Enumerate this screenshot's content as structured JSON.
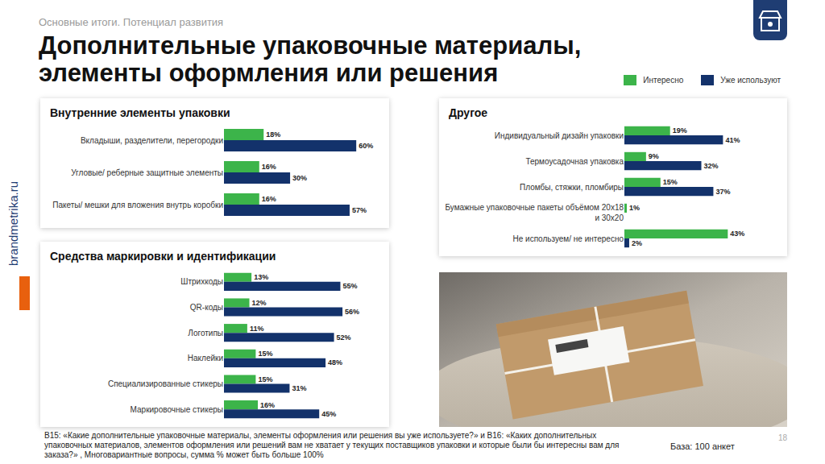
{
  "header": {
    "section": "Основные итоги. Потенциал развития",
    "title": "Дополнительные упаковочные материалы, элементы оформления или решения"
  },
  "side_label": "brandmetrika.ru",
  "footnote": "В15: «Какие дополнительные упаковочные материалы, элементы оформления или решения вы уже используете?» и В16: «Каких дополнительных упаковочных материалов, элементов оформления или решений вам не хватает у текущих поставщиков упаковки и которые были бы интересны вам для заказа?» , Многовариантные вопросы, сумма % может быть больше 100%",
  "base": "База: 100 анкет",
  "page_number": "18",
  "chart_data": [
    {
      "type": "bar",
      "title": "Внутренние элементы упаковки",
      "orientation": "horizontal",
      "data_labels": true,
      "tick_labels": "y",
      "legend": "top right",
      "xlim": [
        0,
        72
      ],
      "categories": [
        "Вкладыши, разделители, перегородки",
        "Угловые/ реберные защитные элементы",
        "Пакеты/ мешки для вложения внутрь коробки"
      ],
      "series": [
        {
          "name": "Интересно",
          "color": "#3cb44a",
          "values": [
            18,
            16,
            16
          ],
          "value_labels": [
            "18%",
            "16%",
            "16%"
          ]
        },
        {
          "name": "Уже используют",
          "color": "#13326b",
          "values": [
            60,
            30,
            57
          ],
          "value_labels": [
            "60%",
            "30%",
            "57%"
          ]
        }
      ]
    },
    {
      "type": "bar",
      "title": "Средства маркировки и идентификации",
      "orientation": "horizontal",
      "data_labels": true,
      "tick_labels": "y",
      "xlim": [
        0,
        75
      ],
      "categories": [
        "Штрихкоды",
        "QR-коды",
        "Логотипы",
        "Наклейки",
        "Специализированные стикеры",
        "Маркировочные стикеры"
      ],
      "series": [
        {
          "name": "Интересно",
          "color": "#3cb44a",
          "values": [
            13,
            12,
            11,
            15,
            15,
            16
          ],
          "value_labels": [
            "13%",
            "12%",
            "11%",
            "15%",
            "15%",
            "16%"
          ]
        },
        {
          "name": "Уже используют",
          "color": "#13326b",
          "values": [
            55,
            56,
            52,
            48,
            31,
            45
          ],
          "value_labels": [
            "55%",
            "56%",
            "52%",
            "48%",
            "31%",
            "45%"
          ]
        }
      ]
    },
    {
      "type": "bar",
      "title": "Другое",
      "orientation": "horizontal",
      "data_labels": true,
      "tick_labels": "y",
      "xlim": [
        0,
        65
      ],
      "categories": [
        "Индивидуальный дизайн упаковки",
        "Термоусадочная упаковка",
        "Пломбы, стяжки, пломбиры",
        "Бумажные упаковочные пакеты объёмом 20x18 и 30x20",
        "Не используем/ не интересно"
      ],
      "series": [
        {
          "name": "Интересно",
          "color": "#3cb44a",
          "values": [
            19,
            9,
            15,
            1,
            43
          ],
          "value_labels": [
            "19%",
            "9%",
            "15%",
            "1%",
            "43%"
          ]
        },
        {
          "name": "Уже используют",
          "color": "#13326b",
          "values": [
            41,
            32,
            37,
            null,
            2
          ],
          "value_labels": [
            "41%",
            "32%",
            "37%",
            null,
            "2%"
          ]
        }
      ]
    }
  ]
}
